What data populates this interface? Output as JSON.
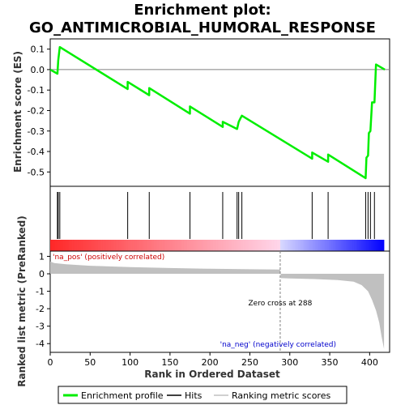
{
  "chart_data": [
    {
      "type": "line",
      "title_line1": "Enrichment plot:",
      "title_line2": "GO_ANTIMICROBIAL_HUMORAL_RESPONSE",
      "ylabel": "Enrichment score (ES)",
      "xlim": [
        0,
        425
      ],
      "ylim": [
        -0.57,
        0.15
      ],
      "yticks": [
        0.1,
        0.0,
        -0.1,
        -0.2,
        -0.3,
        -0.4,
        -0.5
      ],
      "ytick_labels": [
        "0.1",
        "0.0",
        "-0.1",
        "-0.2",
        "-0.3",
        "-0.4",
        "-0.5"
      ],
      "series": [
        {
          "color": "#00ee00",
          "x": [
            0,
            9,
            10,
            12,
            97,
            97,
            124,
            124,
            175,
            175,
            216,
            216,
            234,
            236,
            238,
            240,
            328,
            328,
            348,
            348,
            395,
            396,
            398,
            399,
            401,
            403,
            406,
            408,
            419
          ],
          "y": [
            0.0,
            -0.02,
            0.045,
            0.11,
            -0.095,
            -0.06,
            -0.125,
            -0.09,
            -0.215,
            -0.18,
            -0.28,
            -0.255,
            -0.29,
            -0.255,
            -0.24,
            -0.225,
            -0.435,
            -0.405,
            -0.45,
            -0.415,
            -0.53,
            -0.43,
            -0.42,
            -0.31,
            -0.3,
            -0.16,
            -0.16,
            0.025,
            0.0
          ]
        }
      ]
    },
    {
      "type": "hits",
      "hit_positions": [
        9,
        10,
        12,
        97,
        124,
        175,
        216,
        234,
        236,
        240,
        328,
        348,
        395,
        398,
        401,
        406
      ]
    },
    {
      "type": "area",
      "xlabel": "Rank in Ordered Dataset",
      "ylabel": "Ranked list metric (PreRanked)",
      "xlim": [
        0,
        425
      ],
      "ylim": [
        -4.5,
        1.3
      ],
      "xticks": [
        0,
        50,
        100,
        150,
        200,
        250,
        300,
        350,
        400
      ],
      "xtick_labels": [
        "0",
        "50",
        "100",
        "150",
        "200",
        "250",
        "300",
        "350",
        "400"
      ],
      "yticks": [
        1,
        0,
        -1,
        -2,
        -3,
        -4
      ],
      "ytick_labels": [
        "1",
        "0",
        "-1",
        "-2",
        "-3",
        "-4"
      ],
      "x": [
        0,
        5,
        20,
        50,
        100,
        150,
        200,
        250,
        288,
        289,
        300,
        330,
        360,
        380,
        390,
        398,
        403,
        408,
        412,
        415,
        418
      ],
      "y": [
        0.7,
        0.62,
        0.55,
        0.46,
        0.38,
        0.33,
        0.29,
        0.26,
        0.24,
        -0.25,
        -0.27,
        -0.3,
        -0.36,
        -0.45,
        -0.65,
        -1.0,
        -1.5,
        -2.1,
        -2.8,
        -3.6,
        -4.3
      ],
      "zero_cross": 288,
      "zero_cross_label": "Zero cross at 288",
      "pos_label": "'na_pos' (positively correlated)",
      "neg_label": "'na_neg' (negatively correlated)"
    }
  ],
  "legend": {
    "items": [
      {
        "label": "Enrichment profile",
        "color": "#00ee00"
      },
      {
        "label": "Hits",
        "color": "#000000"
      },
      {
        "label": "Ranking metric scores",
        "color": "#c0c0c0"
      }
    ]
  },
  "colors": {
    "profile": "#00ee00",
    "pos_label": "#cc0000",
    "neg_label": "#0000cc",
    "metric_fill": "#c0c0c0",
    "zero_line": "#808080"
  }
}
